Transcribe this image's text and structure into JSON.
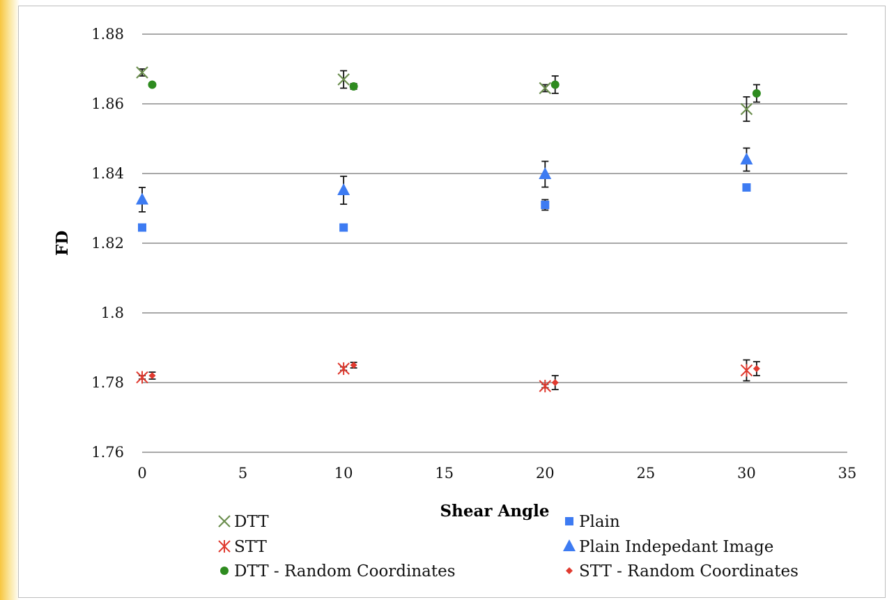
{
  "chart_data": {
    "type": "scatter",
    "title": "",
    "xlabel": "Shear Angle",
    "ylabel": "FD",
    "xlim": [
      0,
      35
    ],
    "ylim": [
      1.76,
      1.88
    ],
    "x_ticks": [
      "0",
      "5",
      "10",
      "15",
      "20",
      "25",
      "30",
      "35"
    ],
    "y_ticks": [
      "1.76",
      "1.78",
      "1.8",
      "1.82",
      "1.84",
      "1.86",
      "1.88"
    ],
    "grid": "horizontal",
    "legend_position": "bottom",
    "series": [
      {
        "name": "DTT",
        "marker": "x",
        "color": "#6b8e4e",
        "points": [
          {
            "x": 0,
            "y": 1.869,
            "err": 0.001
          },
          {
            "x": 10,
            "y": 1.867,
            "err": 0.0025
          },
          {
            "x": 20,
            "y": 1.8645,
            "err": 0.001
          },
          {
            "x": 30,
            "y": 1.8585,
            "err": 0.0035
          }
        ]
      },
      {
        "name": "Plain",
        "marker": "square",
        "color": "#3d7bf2",
        "points": [
          {
            "x": 0,
            "y": 1.8245,
            "err": 0
          },
          {
            "x": 10,
            "y": 1.8245,
            "err": 0
          },
          {
            "x": 20,
            "y": 1.831,
            "err": 0.0015
          },
          {
            "x": 30,
            "y": 1.836,
            "err": 0.0005
          }
        ]
      },
      {
        "name": "STT",
        "marker": "star",
        "color": "#e03a2f",
        "points": [
          {
            "x": 0,
            "y": 1.7815,
            "err": 0.0005
          },
          {
            "x": 10,
            "y": 1.784,
            "err": 0.0005
          },
          {
            "x": 20,
            "y": 1.779,
            "err": 0.0005
          },
          {
            "x": 30,
            "y": 1.7835,
            "err": 0.003
          }
        ]
      },
      {
        "name": "Plain Indepedant Image",
        "marker": "triangle",
        "color": "#3d7bf2",
        "points": [
          {
            "x": 0,
            "y": 1.8325,
            "err": 0.0035
          },
          {
            "x": 10,
            "y": 1.8352,
            "err": 0.004
          },
          {
            "x": 20,
            "y": 1.8398,
            "err": 0.0037
          },
          {
            "x": 30,
            "y": 1.844,
            "err": 0.0033
          }
        ]
      },
      {
        "name": "DTT - Random Coordinates",
        "marker": "circle",
        "color": "#2e8b1f",
        "points": [
          {
            "x": 0.5,
            "y": 1.8655,
            "err": 0.0005
          },
          {
            "x": 10.5,
            "y": 1.865,
            "err": 0.0008
          },
          {
            "x": 20.5,
            "y": 1.8655,
            "err": 0.0025
          },
          {
            "x": 30.5,
            "y": 1.863,
            "err": 0.0025
          }
        ]
      },
      {
        "name": "STT - Random Coordinates",
        "marker": "diamond",
        "color": "#e03a2f",
        "points": [
          {
            "x": 0.5,
            "y": 1.782,
            "err": 0.001
          },
          {
            "x": 10.5,
            "y": 1.785,
            "err": 0.0008
          },
          {
            "x": 20.5,
            "y": 1.78,
            "err": 0.002
          },
          {
            "x": 30.5,
            "y": 1.784,
            "err": 0.002
          }
        ]
      }
    ]
  }
}
